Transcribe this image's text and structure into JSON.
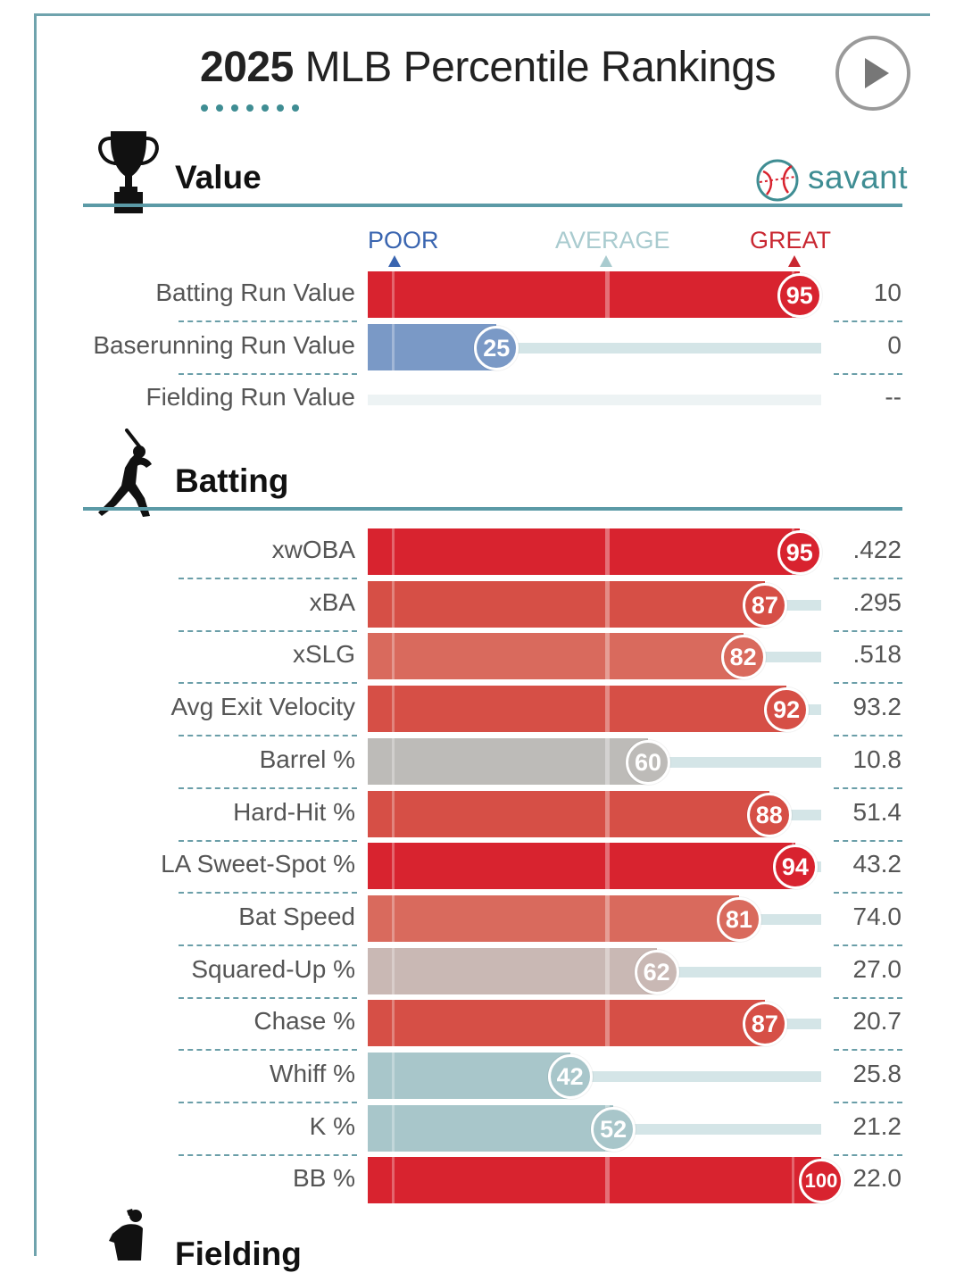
{
  "title_year": "2025",
  "title_rest": " MLB Percentile Rankings",
  "brand": "savant",
  "scale": {
    "poor": "POOR",
    "average": "AVERAGE",
    "great": "GREAT"
  },
  "sections": {
    "value": "Value",
    "batting": "Batting",
    "fielding": "Fielding"
  },
  "colors": {
    "great": "#d8232f",
    "good": "#d64f46",
    "above": "#d96a5d",
    "neutral": "#bdbbb8",
    "slightly_above": "#c9b8b4",
    "below": "#a8c6ca",
    "poor": "#7a99c6",
    "accent": "#5b9aa6"
  },
  "chart_data": [
    {
      "type": "bar",
      "title": "Value",
      "xlim": [
        0,
        100
      ],
      "categories": [
        "Batting Run Value",
        "Baserunning Run Value",
        "Fielding Run Value"
      ],
      "percentiles": [
        95,
        25,
        null
      ],
      "values": [
        "10",
        "0",
        "--"
      ]
    },
    {
      "type": "bar",
      "title": "Batting",
      "xlim": [
        0,
        100
      ],
      "categories": [
        "xwOBA",
        "xBA",
        "xSLG",
        "Avg Exit Velocity",
        "Barrel %",
        "Hard-Hit %",
        "LA Sweet-Spot %",
        "Bat Speed",
        "Squared-Up %",
        "Chase %",
        "Whiff %",
        "K %",
        "BB %"
      ],
      "percentiles": [
        95,
        87,
        82,
        92,
        60,
        88,
        94,
        81,
        62,
        87,
        42,
        52,
        100
      ],
      "values": [
        ".422",
        ".295",
        ".518",
        "93.2",
        "10.8",
        "51.4",
        "43.2",
        "74.0",
        "27.0",
        "20.7",
        "25.8",
        "21.2",
        "22.0"
      ]
    }
  ]
}
